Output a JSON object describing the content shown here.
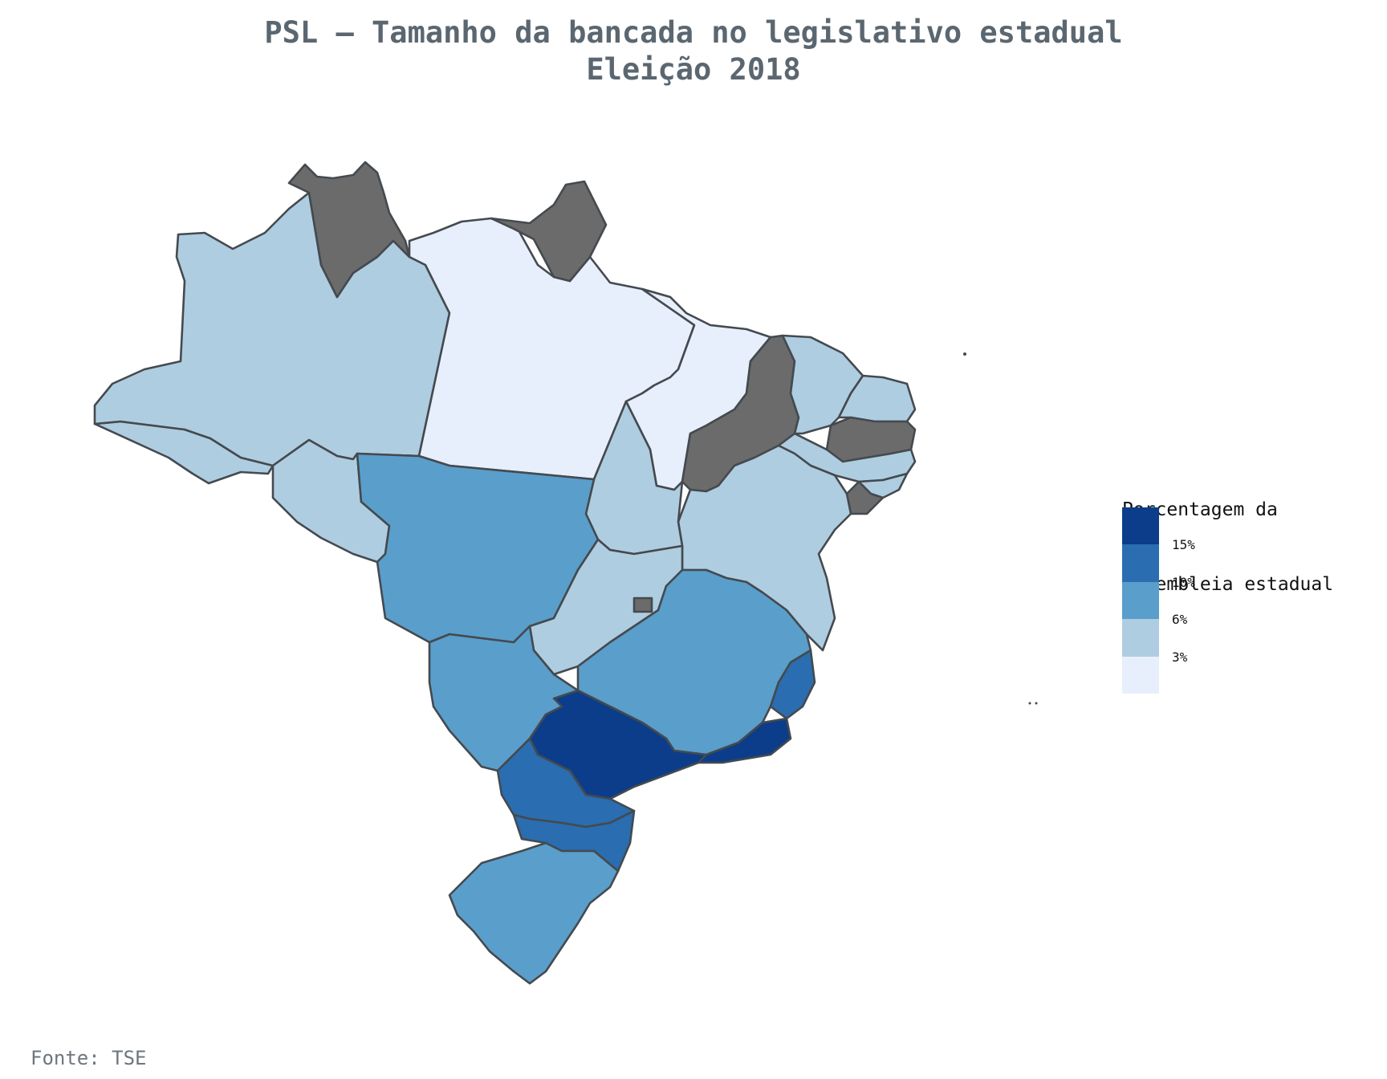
{
  "title": {
    "line1": "PSL – Tamanho da bancada no legislativo estadual",
    "line2": "Eleição 2018"
  },
  "legend": {
    "title_line1": "Porcentagem da",
    "title_line2": "assembleia estadual",
    "ticks": [
      "15%",
      "10%",
      "6%",
      "3%"
    ],
    "bins": [
      {
        "range": ">15%",
        "color": "#0b3d8a"
      },
      {
        "range": "10–15%",
        "color": "#2a6db0"
      },
      {
        "range": "6–10%",
        "color": "#5a9ecb"
      },
      {
        "range": "3–6%",
        "color": "#afcde1"
      },
      {
        "range": "<3%",
        "color": "#e8effc"
      }
    ],
    "no_data_color": "#6b6b6b"
  },
  "map_data": {
    "states": [
      {
        "uf": "AC",
        "bin": "3–6%"
      },
      {
        "uf": "AM",
        "bin": "3–6%"
      },
      {
        "uf": "RR",
        "bin": "no data"
      },
      {
        "uf": "PA",
        "bin": "<3%"
      },
      {
        "uf": "AP",
        "bin": "no data"
      },
      {
        "uf": "MA",
        "bin": "<3%"
      },
      {
        "uf": "PI",
        "bin": "no data"
      },
      {
        "uf": "CE",
        "bin": "3–6%"
      },
      {
        "uf": "RN",
        "bin": "3–6%"
      },
      {
        "uf": "PB",
        "bin": "no data"
      },
      {
        "uf": "PE",
        "bin": "3–6%"
      },
      {
        "uf": "AL",
        "bin": "3–6%"
      },
      {
        "uf": "SE",
        "bin": "no data"
      },
      {
        "uf": "BA",
        "bin": "3–6%"
      },
      {
        "uf": "TO",
        "bin": "3–6%"
      },
      {
        "uf": "RO",
        "bin": "3–6%"
      },
      {
        "uf": "MT",
        "bin": "6–10%"
      },
      {
        "uf": "GO",
        "bin": "3–6%"
      },
      {
        "uf": "DF",
        "bin": "no data"
      },
      {
        "uf": "MS",
        "bin": "6–10%"
      },
      {
        "uf": "MG",
        "bin": "6–10%"
      },
      {
        "uf": "ES",
        "bin": "10–15%"
      },
      {
        "uf": "RJ",
        "bin": ">15%"
      },
      {
        "uf": "SP",
        "bin": ">15%"
      },
      {
        "uf": "PR",
        "bin": "10–15%"
      },
      {
        "uf": "SC",
        "bin": "10–15%"
      },
      {
        "uf": "RS",
        "bin": "6–10%"
      }
    ]
  },
  "source": "Fonte: TSE"
}
